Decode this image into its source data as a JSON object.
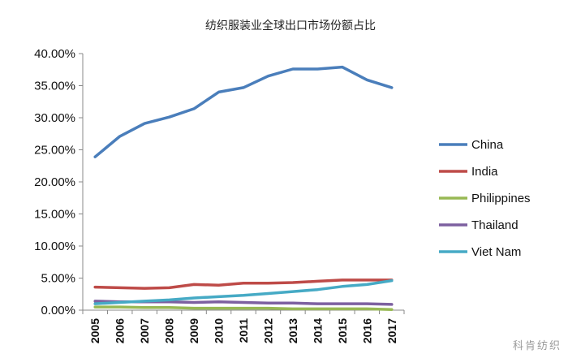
{
  "watermark": "科肯纺织",
  "chart_data": {
    "type": "line",
    "title": "纺织服装业全球出口市场份额占比",
    "xlabel": "",
    "ylabel": "",
    "x": [
      "2005",
      "2006",
      "2007",
      "2008",
      "2009",
      "2010",
      "2011",
      "2012",
      "2013",
      "2014",
      "2015",
      "2016",
      "2017"
    ],
    "ylim": [
      0,
      0.4
    ],
    "yticks": [
      "40.00%",
      "35.00%",
      "30.00%",
      "25.00%",
      "20.00%",
      "15.00%",
      "10.00%",
      "5.00%",
      "0.00%"
    ],
    "grid": false,
    "legend_position": "right",
    "series": [
      {
        "name": "China",
        "color": "#4A7EBB",
        "values": [
          0.239,
          0.271,
          0.291,
          0.301,
          0.314,
          0.34,
          0.347,
          0.365,
          0.376,
          0.376,
          0.379,
          0.359,
          0.347
        ]
      },
      {
        "name": "India",
        "color": "#BE4B48",
        "values": [
          0.036,
          0.035,
          0.034,
          0.035,
          0.04,
          0.039,
          0.042,
          0.042,
          0.043,
          0.045,
          0.047,
          0.047,
          0.047
        ]
      },
      {
        "name": "Philippines",
        "color": "#98B954",
        "values": [
          0.005,
          0.005,
          0.004,
          0.004,
          0.003,
          0.003,
          0.003,
          0.003,
          0.002,
          0.002,
          0.002,
          0.002,
          0.001
        ]
      },
      {
        "name": "Thailand",
        "color": "#7D60A0",
        "values": [
          0.014,
          0.013,
          0.013,
          0.013,
          0.012,
          0.013,
          0.012,
          0.011,
          0.011,
          0.01,
          0.01,
          0.01,
          0.009
        ]
      },
      {
        "name": "Viet Nam",
        "color": "#46AAC5",
        "values": [
          0.01,
          0.012,
          0.014,
          0.016,
          0.019,
          0.021,
          0.023,
          0.026,
          0.029,
          0.032,
          0.037,
          0.04,
          0.046
        ]
      }
    ]
  }
}
